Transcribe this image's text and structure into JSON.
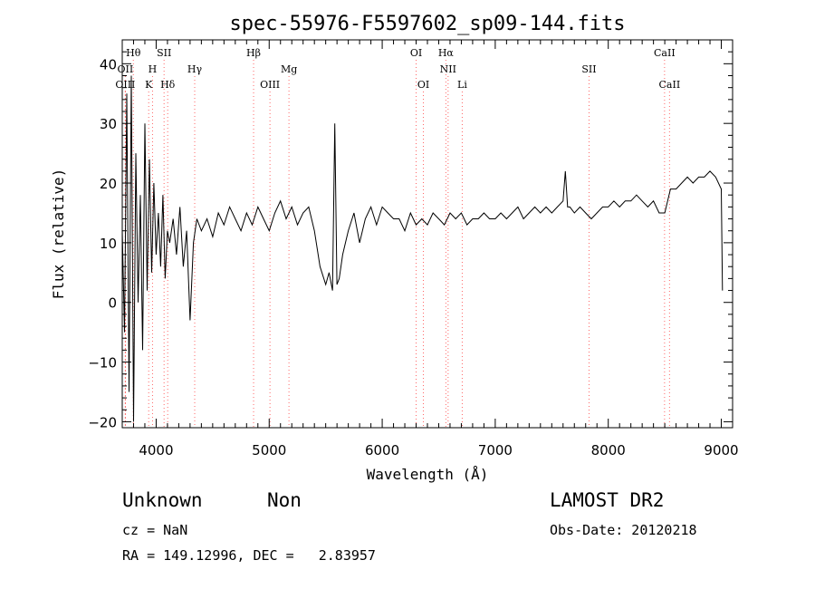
{
  "chart_data": {
    "type": "line",
    "title": "spec-55976-F5597602_sp09-144.fits",
    "xlabel": "Wavelength (Å)",
    "ylabel": "Flux (relative)",
    "xlim": [
      3700,
      9100
    ],
    "ylim": [
      -21,
      44
    ],
    "xticks": [
      4000,
      5000,
      6000,
      7000,
      8000,
      9000
    ],
    "yticks": [
      -20,
      -10,
      0,
      10,
      20,
      30,
      40
    ],
    "grid": false,
    "line_color": "#000000",
    "marker_line_color": "#ff6666",
    "series": [
      {
        "x": [
          3700,
          3720,
          3740,
          3760,
          3780,
          3800,
          3820,
          3840,
          3860,
          3880,
          3900,
          3920,
          3940,
          3960,
          3980,
          4000,
          4020,
          4040,
          4060,
          4080,
          4100,
          4120,
          4150,
          4180,
          4210,
          4240,
          4270,
          4300,
          4330,
          4360,
          4400,
          4450,
          4500,
          4550,
          4600,
          4650,
          4700,
          4750,
          4800,
          4850,
          4900,
          4950,
          5000,
          5050,
          5100,
          5150,
          5200,
          5250,
          5300,
          5350,
          5400,
          5450,
          5500,
          5530,
          5560,
          5580,
          5600,
          5620,
          5650,
          5700,
          5750,
          5800,
          5850,
          5900,
          5950,
          6000,
          6050,
          6100,
          6150,
          6200,
          6250,
          6300,
          6350,
          6400,
          6450,
          6500,
          6550,
          6600,
          6650,
          6700,
          6750,
          6800,
          6850,
          6900,
          6950,
          7000,
          7050,
          7100,
          7150,
          7200,
          7250,
          7300,
          7350,
          7400,
          7450,
          7500,
          7550,
          7600,
          7620,
          7640,
          7660,
          7700,
          7750,
          7800,
          7850,
          7900,
          7950,
          8000,
          8050,
          8100,
          8150,
          8200,
          8250,
          8300,
          8350,
          8400,
          8450,
          8500,
          8550,
          8600,
          8650,
          8700,
          8750,
          8800,
          8850,
          8900,
          8950,
          9000,
          9010
        ],
        "y": [
          12,
          -5,
          35,
          -15,
          38,
          -20,
          25,
          0,
          18,
          -8,
          30,
          2,
          24,
          5,
          20,
          8,
          15,
          6,
          18,
          4,
          12,
          10,
          14,
          8,
          16,
          6,
          12,
          -3,
          10,
          14,
          12,
          14,
          11,
          15,
          13,
          16,
          14,
          12,
          15,
          13,
          16,
          14,
          12,
          15,
          17,
          14,
          16,
          13,
          15,
          16,
          12,
          6,
          3,
          5,
          2,
          30,
          3,
          4,
          8,
          12,
          15,
          10,
          14,
          16,
          13,
          16,
          15,
          14,
          14,
          12,
          15,
          13,
          14,
          13,
          15,
          14,
          13,
          15,
          14,
          15,
          13,
          14,
          14,
          15,
          14,
          14,
          15,
          14,
          15,
          16,
          14,
          15,
          16,
          15,
          16,
          15,
          16,
          17,
          22,
          16,
          16,
          15,
          16,
          15,
          14,
          15,
          16,
          16,
          17,
          16,
          17,
          17,
          18,
          17,
          16,
          17,
          15,
          15,
          19,
          19,
          20,
          21,
          20,
          21,
          21,
          22,
          21,
          19,
          2
        ]
      }
    ],
    "lines": [
      {
        "label": "Hθ",
        "x": 3798,
        "row": 1
      },
      {
        "label": "OII",
        "x": 3727,
        "row": 2
      },
      {
        "label": "OIII",
        "x": 3727,
        "row": 3
      },
      {
        "label": "SII",
        "x": 4070,
        "row": 1
      },
      {
        "label": "H",
        "x": 3968,
        "row": 2
      },
      {
        "label": "K",
        "x": 3934,
        "row": 3
      },
      {
        "label": "Hδ",
        "x": 4102,
        "row": 3
      },
      {
        "label": "Hγ",
        "x": 4341,
        "row": 2
      },
      {
        "label": "Hβ",
        "x": 4862,
        "row": 1
      },
      {
        "label": "Mg",
        "x": 5175,
        "row": 2
      },
      {
        "label": "OIII",
        "x": 5007,
        "row": 3
      },
      {
        "label": "OI",
        "x": 6300,
        "row": 1
      },
      {
        "label": "Hα",
        "x": 6563,
        "row": 1
      },
      {
        "label": "NII",
        "x": 6583,
        "row": 2
      },
      {
        "label": "OI",
        "x": 6364,
        "row": 3
      },
      {
        "label": "Li",
        "x": 6708,
        "row": 3
      },
      {
        "label": "SII",
        "x": 7830,
        "row": 2
      },
      {
        "label": "CaII",
        "x": 8498,
        "row": 1
      },
      {
        "label": "CaII",
        "x": 8542,
        "row": 3
      }
    ]
  },
  "footer": {
    "class_label": "Unknown",
    "subclass_label": "Non",
    "survey": "LAMOST DR2",
    "cz": "cz = NaN",
    "obs_date": "Obs-Date: 20120218",
    "coords": "RA = 149.12996, DEC =   2.83957"
  }
}
